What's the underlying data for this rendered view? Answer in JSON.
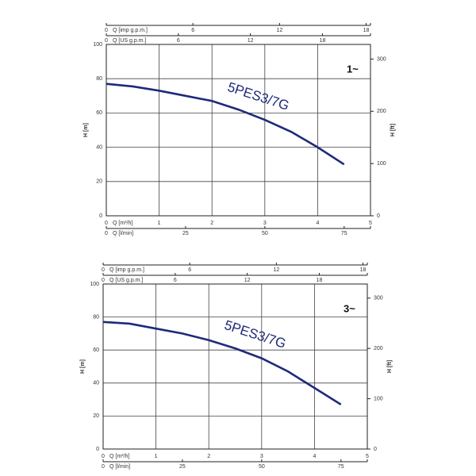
{
  "chart_data": [
    {
      "type": "line",
      "badge": "1~",
      "xlabel": "Q [m³/h]",
      "xlim": [
        0,
        5
      ],
      "xticks": [
        0,
        1,
        2,
        3,
        4,
        5
      ],
      "ylabel": "H [m]",
      "ylim": [
        0,
        100
      ],
      "yticks": [
        0,
        20,
        40,
        60,
        80,
        100
      ],
      "y2label": "H [ft]",
      "y2lim": [
        0,
        328
      ],
      "y2ticks": [
        0,
        100,
        200,
        300
      ],
      "extra_x_axes": [
        {
          "position": "bottom",
          "label": "Q [l/min]",
          "lim": [
            0,
            83.3
          ],
          "ticks": [
            0,
            25,
            50,
            75
          ]
        },
        {
          "position": "top",
          "label": "Q [US g.p.m.]",
          "lim": [
            0,
            22
          ],
          "ticks": [
            0,
            6,
            12,
            18
          ]
        },
        {
          "position": "top",
          "label": "Q [imp g.p.m.]",
          "lim": [
            0,
            18.3
          ],
          "ticks": [
            0,
            6,
            12,
            18
          ]
        }
      ],
      "grid": true,
      "series": [
        {
          "name": "5PES3/7G",
          "color": "#1f2a7a",
          "x": [
            0,
            0.5,
            1,
            1.5,
            2,
            2.5,
            3,
            3.5,
            4,
            4.5
          ],
          "values": [
            77,
            75.5,
            73,
            70,
            67,
            62,
            56,
            49,
            40,
            30
          ]
        }
      ]
    },
    {
      "type": "line",
      "badge": "3~",
      "xlabel": "Q [m³/h]",
      "xlim": [
        0,
        5
      ],
      "xticks": [
        0,
        1,
        2,
        3,
        4,
        5
      ],
      "ylabel": "H [m]",
      "ylim": [
        0,
        100
      ],
      "yticks": [
        0,
        20,
        40,
        60,
        80,
        100
      ],
      "y2label": "H [ft]",
      "y2lim": [
        0,
        328
      ],
      "y2ticks": [
        0,
        100,
        200,
        300
      ],
      "extra_x_axes": [
        {
          "position": "bottom",
          "label": "Q [l/min]",
          "lim": [
            0,
            83.3
          ],
          "ticks": [
            0,
            25,
            50,
            75
          ]
        },
        {
          "position": "top",
          "label": "Q [US g.p.m.]",
          "lim": [
            0,
            22
          ],
          "ticks": [
            0,
            6,
            12,
            18
          ]
        },
        {
          "position": "top",
          "label": "Q [imp g.p.m.]",
          "lim": [
            0,
            18.3
          ],
          "ticks": [
            0,
            6,
            12,
            18
          ]
        }
      ],
      "grid": true,
      "series": [
        {
          "name": "5PES3/7G",
          "color": "#1f2a7a",
          "x": [
            0,
            0.5,
            1,
            1.5,
            2,
            2.5,
            3,
            3.5,
            4,
            4.5
          ],
          "values": [
            77,
            76,
            73,
            70,
            66,
            61,
            55,
            47,
            37,
            27
          ]
        }
      ]
    }
  ]
}
